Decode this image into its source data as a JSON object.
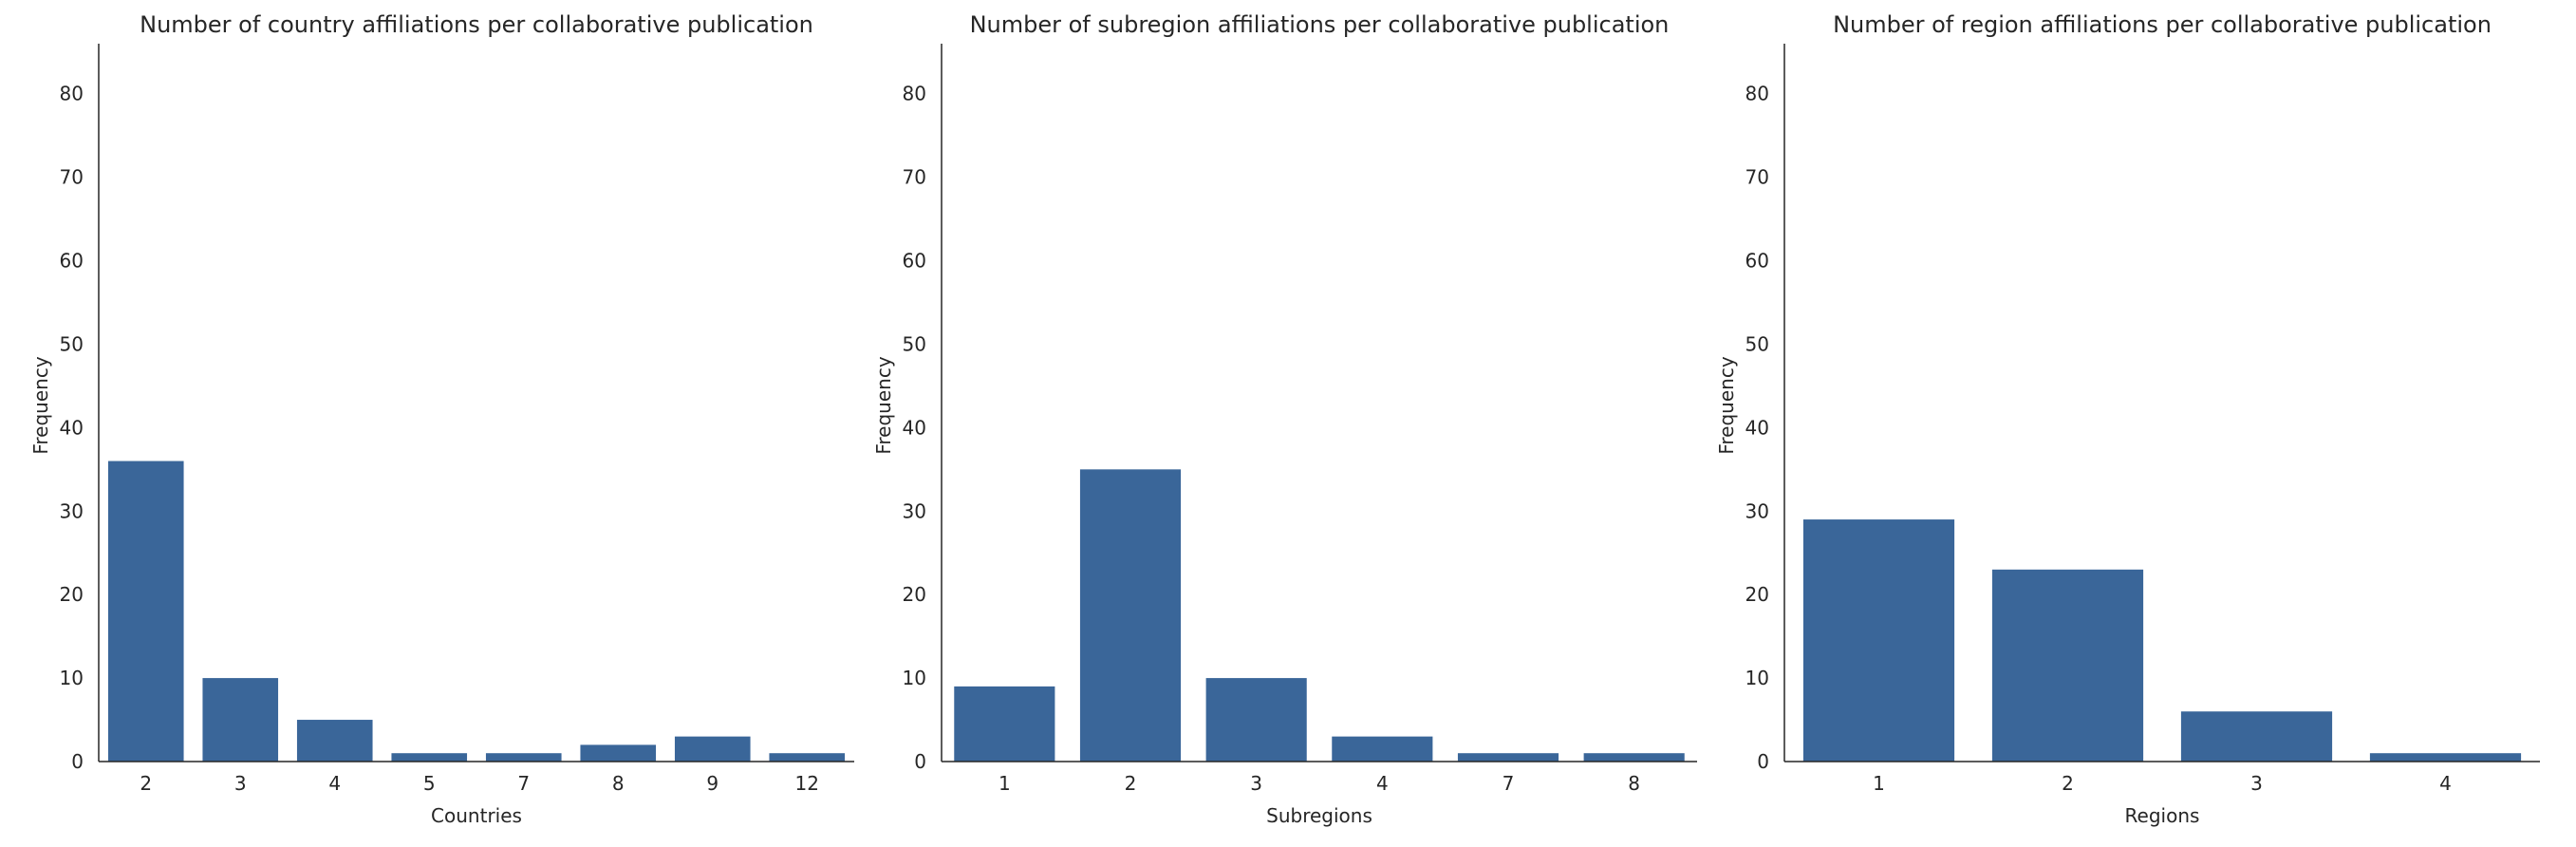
{
  "colors": {
    "bar": "#3a6699",
    "axis": "#262626",
    "background": "#ffffff"
  },
  "chart_data": [
    {
      "type": "bar",
      "title": "Number of country affiliations per collaborative publication",
      "xlabel": "Countries",
      "ylabel": "Frequency",
      "categories": [
        "2",
        "3",
        "4",
        "5",
        "7",
        "8",
        "9",
        "12"
      ],
      "values": [
        36,
        10,
        5,
        1,
        1,
        2,
        3,
        1
      ],
      "ylim": [
        0,
        86
      ],
      "yticks": [
        0,
        10,
        20,
        30,
        40,
        50,
        60,
        70,
        80
      ],
      "grid": false
    },
    {
      "type": "bar",
      "title": "Number of subregion affiliations per collaborative publication",
      "xlabel": "Subregions",
      "ylabel": "Frequency",
      "categories": [
        "1",
        "2",
        "3",
        "4",
        "7",
        "8"
      ],
      "values": [
        9,
        35,
        10,
        3,
        1,
        1
      ],
      "ylim": [
        0,
        86
      ],
      "yticks": [
        0,
        10,
        20,
        30,
        40,
        50,
        60,
        70,
        80
      ],
      "grid": false
    },
    {
      "type": "bar",
      "title": "Number of region affiliations per collaborative publication",
      "xlabel": "Regions",
      "ylabel": "Frequency",
      "categories": [
        "1",
        "2",
        "3",
        "4"
      ],
      "values": [
        29,
        23,
        6,
        1
      ],
      "ylim": [
        0,
        86
      ],
      "yticks": [
        0,
        10,
        20,
        30,
        40,
        50,
        60,
        70,
        80
      ],
      "grid": false
    }
  ]
}
